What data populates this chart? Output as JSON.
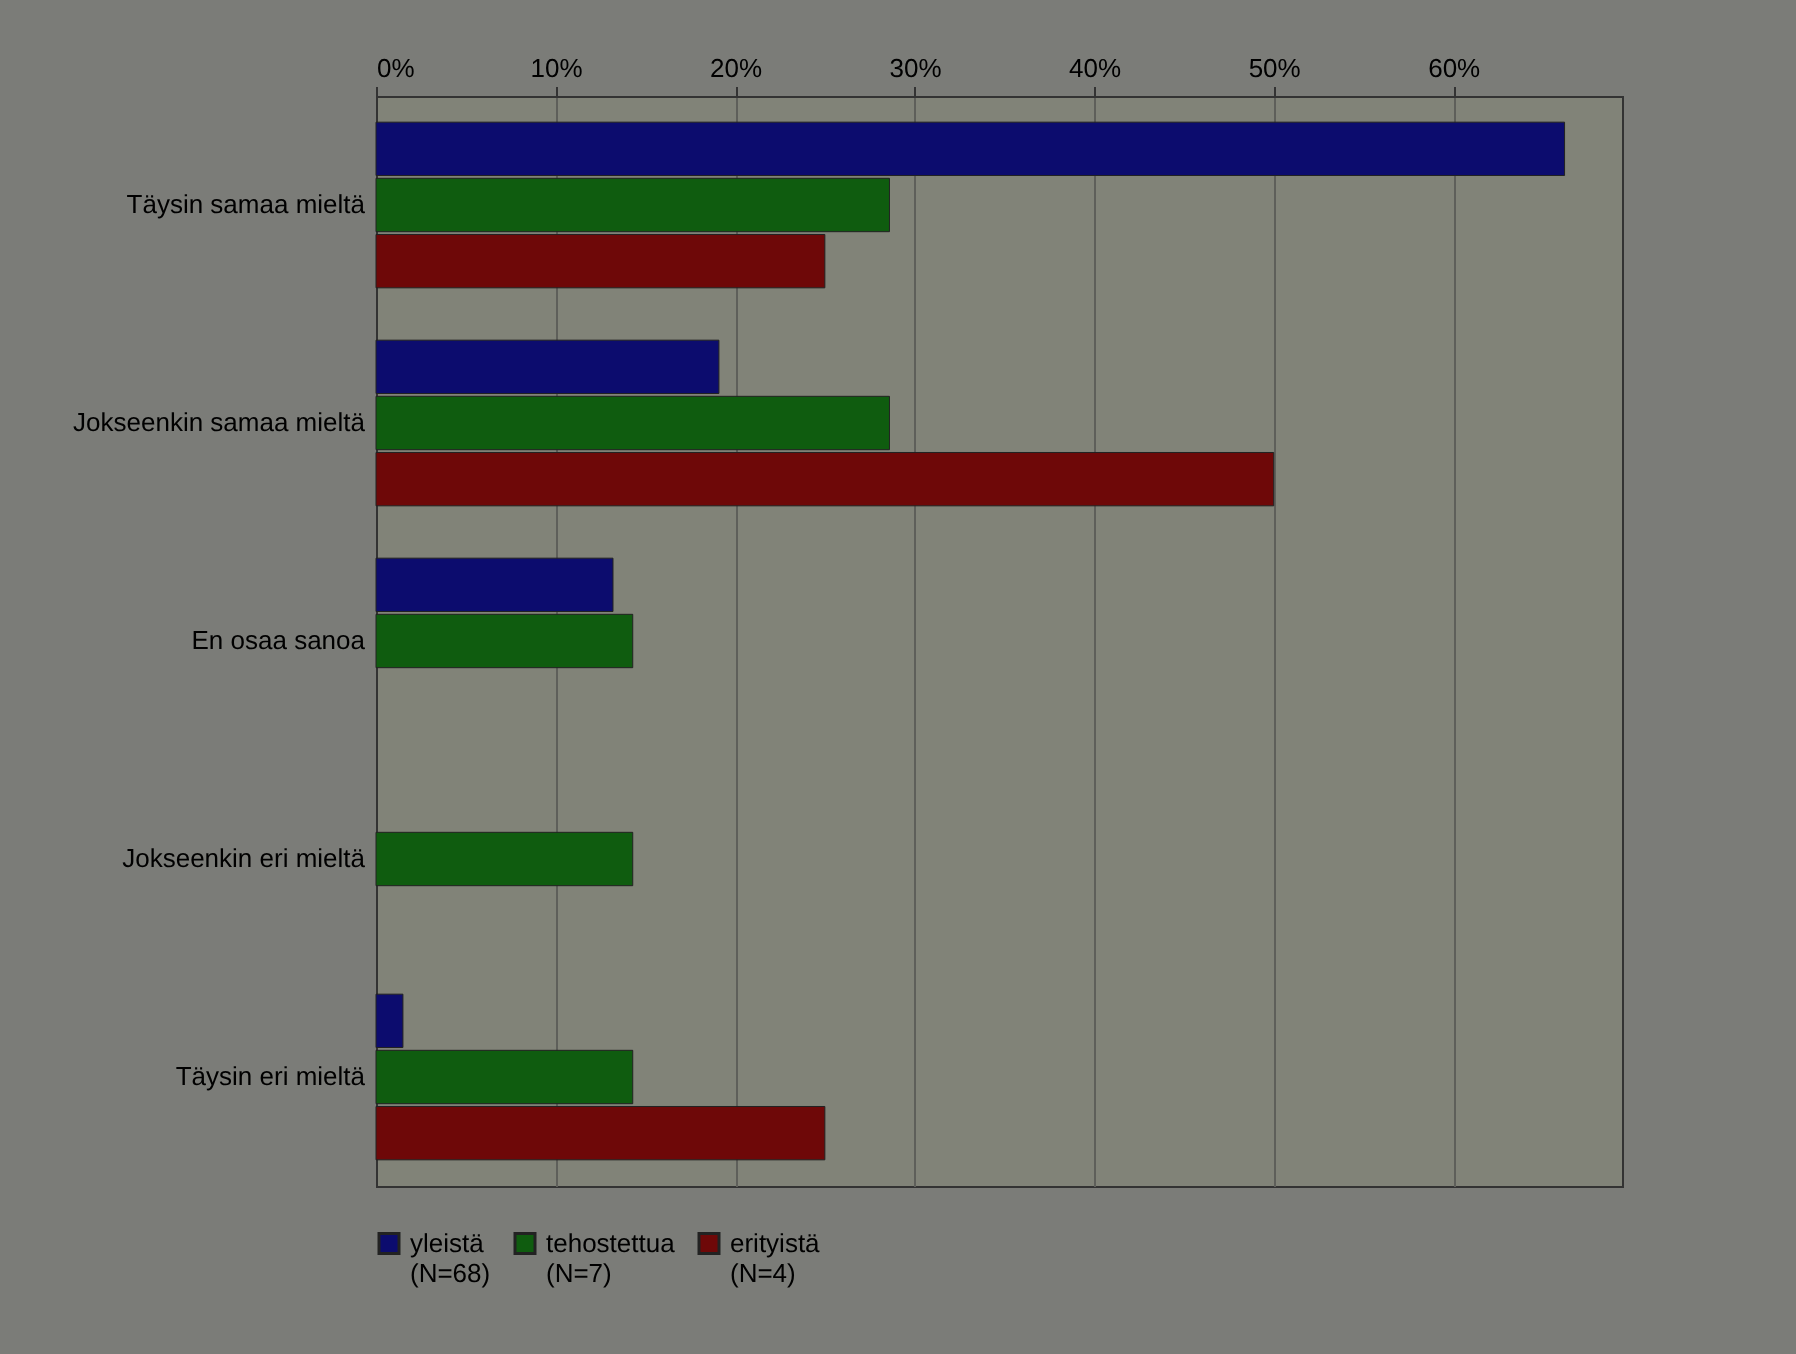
{
  "chart_data": {
    "type": "bar",
    "orientation": "horizontal",
    "categories": [
      "Täysin samaa mieltä",
      "Jokseenkin samaa mieltä",
      "En osaa sanoa",
      "Jokseenkin eri mieltä",
      "Täysin eri mieltä"
    ],
    "series": [
      {
        "name": "yleistä\n(N=68)",
        "color": "#0c0c6e",
        "values": [
          66.2,
          19.1,
          13.2,
          null,
          1.5
        ]
      },
      {
        "name": "tehostettua\n(N=7)",
        "color": "#0f5c0f",
        "values": [
          28.6,
          28.6,
          14.3,
          14.3,
          14.3
        ]
      },
      {
        "name": "erityistä\n(N=4)",
        "color": "#6e0808",
        "values": [
          25,
          50,
          null,
          null,
          25
        ]
      }
    ],
    "xlim": [
      0,
      69.4
    ],
    "xticks": [
      {
        "value": 0,
        "label": "0%"
      },
      {
        "value": 10,
        "label": "10%"
      },
      {
        "value": 20,
        "label": "20%"
      },
      {
        "value": 30,
        "label": "30%"
      },
      {
        "value": 40,
        "label": "40%"
      },
      {
        "value": 50,
        "label": "50%"
      },
      {
        "value": 60,
        "label": "60%"
      }
    ],
    "grid": "x",
    "legend": "bottom"
  }
}
